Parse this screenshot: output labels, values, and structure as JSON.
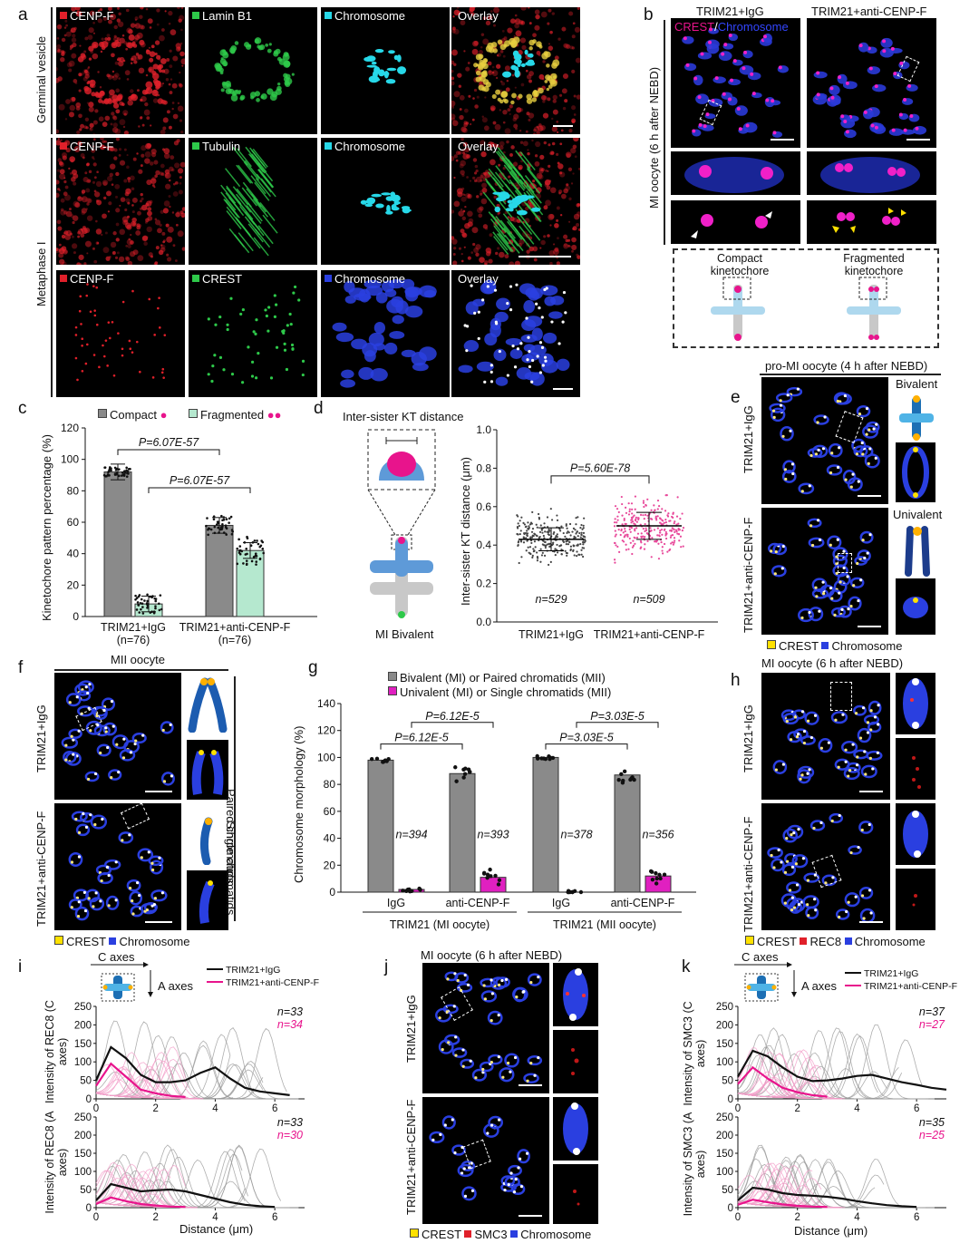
{
  "panels": {
    "a": {
      "label": "a",
      "row_labels": [
        "Germinal vesicle",
        "Metaphase I"
      ],
      "rows": [
        [
          "CENP-F",
          "Lamin B1",
          "Chromosome",
          "Overlay"
        ],
        [
          "CENP-F",
          "Tubulin",
          "Chromosome",
          "Overlay"
        ],
        [
          "CENP-F",
          "CREST",
          "Chromosome",
          "Overlay"
        ]
      ]
    },
    "b": {
      "label": "b",
      "col_labels": [
        "TRIM21+IgG",
        "TRIM21+anti-CENP-F"
      ],
      "legend_crest": "CREST",
      "legend_sep": "/",
      "legend_chrom": "Chromosome",
      "side_label": "MI oocyte (6 h after NEBD)",
      "schematic_labels": [
        "Compact kinetochore",
        "Fragmented kinetochore"
      ]
    },
    "c": {
      "label": "c",
      "legend": [
        "Compact",
        "Fragmented"
      ],
      "ylabel": "Kinetochore pattern percentage (%)",
      "yticks": [
        "0",
        "20",
        "40",
        "60",
        "80",
        "100",
        "120"
      ],
      "pvalues": [
        "P=6.07E-57",
        "P=6.07E-57"
      ],
      "groups": [
        "TRIM21+IgG",
        "TRIM21+anti-CENP-F"
      ],
      "ns": [
        "(n=76)",
        "(n=76)"
      ]
    },
    "d": {
      "label": "d",
      "schematic_title": "Inter-sister KT distance",
      "schematic_label": "MI Bivalent",
      "ylabel": "Inter-sister KT distance (μm)",
      "yticks": [
        "0.0",
        "0.2",
        "0.4",
        "0.6",
        "0.8",
        "1.0"
      ],
      "pvalue": "P=5.60E-78",
      "groups": [
        "TRIM21+IgG",
        "TRIM21+anti-CENP-F"
      ],
      "ns": [
        "n=529",
        "n=509"
      ]
    },
    "e": {
      "label": "e",
      "title": "pro-MI oocyte (4 h after NEBD)",
      "row_labels": [
        "TRIM21+IgG",
        "TRIM21+anti-CENP-F"
      ],
      "schematic_labels": [
        "Bivalent",
        "Univalent"
      ],
      "legend": [
        "CREST",
        "Chromosome"
      ]
    },
    "f": {
      "label": "f",
      "title": "MII oocyte",
      "row_labels": [
        "TRIM21+IgG",
        "TRIM21+anti-CENP-F"
      ],
      "side_labels": [
        "Paired chromatids",
        "Single chromatids"
      ],
      "legend": [
        "CREST",
        "Chromosome"
      ]
    },
    "g": {
      "label": "g",
      "legend": [
        "Bivalent (MI) or Paired chromatids (MII)",
        "Univalent (MI) or Single chromatids (MII)"
      ],
      "ylabel": "Chromosome morphology (%)",
      "yticks": [
        "0",
        "20",
        "40",
        "60",
        "80",
        "100",
        "120",
        "140"
      ],
      "pvalues": [
        "P=6.12E-5",
        "P=6.12E-5",
        "P=3.03E-5",
        "P=3.03E-5"
      ],
      "ns": [
        "n=394",
        "n=393",
        "n=378",
        "n=356"
      ],
      "xlabels": [
        "IgG",
        "anti-CENP-F",
        "IgG",
        "anti-CENP-F"
      ],
      "group_labels": [
        "TRIM21 (MI oocyte)",
        "TRIM21 (MII oocyte)"
      ]
    },
    "h": {
      "label": "h",
      "title": "MI oocyte (6 h after NEBD)",
      "row_labels": [
        "TRIM21+IgG",
        "TRIM21+anti-CENP-F"
      ],
      "legend": [
        "CREST",
        "REC8",
        "Chromosome"
      ]
    },
    "i": {
      "label": "i",
      "axes_labels": [
        "C axes",
        "A axes"
      ],
      "legend": [
        "TRIM21+IgG",
        "TRIM21+anti-CENP-F"
      ],
      "ylabels": [
        "Intensity of REC8 (C axes)",
        "Intensity of REC8 (A axes)"
      ],
      "yticks": [
        "0",
        "50",
        "100",
        "150",
        "200",
        "250"
      ],
      "xticks": [
        "0",
        "2",
        "4",
        "6"
      ],
      "xlabel": "Distance (μm)",
      "ns_top": [
        "n=33",
        "n=34"
      ],
      "ns_bottom": [
        "n=33",
        "n=30"
      ]
    },
    "j": {
      "label": "j",
      "title": "MI oocyte (6 h after NEBD)",
      "row_labels": [
        "TRIM21+IgG",
        "TRIM21+anti-CENP-F"
      ],
      "legend": [
        "CREST",
        "SMC3",
        "Chromosome"
      ]
    },
    "k": {
      "label": "k",
      "axes_labels": [
        "C axes",
        "A axes"
      ],
      "legend": [
        "TRIM21+IgG",
        "TRIM21+anti-CENP-F"
      ],
      "ylabels": [
        "Intensity of SMC3 (C axes)",
        "Intensity of SMC3 (A axes)"
      ],
      "yticks": [
        "0",
        "50",
        "100",
        "150",
        "200",
        "250"
      ],
      "xticks": [
        "0",
        "2",
        "4",
        "6"
      ],
      "xlabel": "Distance (μm)",
      "ns_top": [
        "n=37",
        "n=27"
      ],
      "ns_bottom": [
        "n=35",
        "n=25"
      ]
    }
  },
  "colors": {
    "red": "#e0202a",
    "green": "#2ec94a",
    "cyan": "#27d8e8",
    "blue": "#2a3fe0",
    "magenta": "#e8148c",
    "yellow": "#ffe100",
    "gray_bar": "#8a8a8a",
    "mint_bar": "#b5e8cf",
    "pink": "#e8489a"
  },
  "chart_data": [
    {
      "id": "c",
      "type": "bar",
      "categories": [
        "TRIM21+IgG",
        "TRIM21+anti-CENP-F"
      ],
      "series": [
        {
          "name": "Compact",
          "values": [
            92,
            58
          ]
        },
        {
          "name": "Fragmented",
          "values": [
            8,
            42
          ]
        }
      ],
      "ylabel": "Kinetochore pattern percentage (%)",
      "ylim": [
        0,
        120
      ]
    },
    {
      "id": "d",
      "type": "scatter",
      "categories": [
        "TRIM21+IgG",
        "TRIM21+anti-CENP-F"
      ],
      "means": [
        0.43,
        0.5
      ],
      "sd": [
        0.06,
        0.07
      ],
      "ylabel": "Inter-sister KT distance (μm)",
      "ylim": [
        0,
        1.0
      ]
    },
    {
      "id": "g",
      "type": "bar",
      "categories": [
        "IgG (MI)",
        "anti-CENP-F (MI)",
        "IgG (MII)",
        "anti-CENP-F (MII)"
      ],
      "series": [
        {
          "name": "Bivalent (MI) or Paired chromatids (MII)",
          "values": [
            98,
            88,
            100,
            87
          ]
        },
        {
          "name": "Univalent (MI) or Single chromatids (MII)",
          "values": [
            2,
            11,
            0,
            12
          ]
        }
      ],
      "ylabel": "Chromosome morphology (%)",
      "ylim": [
        0,
        140
      ]
    },
    {
      "id": "i",
      "type": "line",
      "series": [
        {
          "name": "TRIM21+IgG (C axes)",
          "x": [
            0,
            0.5,
            1,
            1.5,
            2,
            2.5,
            3,
            3.5,
            4,
            4.5,
            5,
            5.5,
            6,
            6.5
          ],
          "values": [
            50,
            140,
            110,
            65,
            45,
            45,
            50,
            70,
            85,
            55,
            30,
            20,
            15,
            10
          ]
        },
        {
          "name": "TRIM21+anti-CENP-F (C axes)",
          "x": [
            0,
            0.5,
            1,
            1.5,
            2,
            2.5,
            3
          ],
          "values": [
            35,
            95,
            60,
            25,
            15,
            8,
            5
          ]
        },
        {
          "name": "TRIM21+IgG (A axes)",
          "x": [
            0,
            0.5,
            1,
            1.5,
            2,
            2.5,
            3,
            3.5,
            4,
            4.5,
            5,
            5.5,
            6
          ],
          "values": [
            20,
            65,
            55,
            45,
            48,
            50,
            45,
            35,
            25,
            15,
            8,
            4,
            2
          ]
        },
        {
          "name": "TRIM21+anti-CENP-F (A axes)",
          "x": [
            0,
            0.5,
            1,
            1.5,
            2,
            2.5,
            3
          ],
          "values": [
            10,
            28,
            18,
            10,
            6,
            3,
            2
          ]
        }
      ],
      "xlim": [
        0,
        7
      ],
      "ylim": [
        0,
        250
      ]
    },
    {
      "id": "k",
      "type": "line",
      "series": [
        {
          "name": "TRIM21+IgG (C axes)",
          "x": [
            0,
            0.5,
            1,
            1.5,
            2,
            2.5,
            3,
            3.5,
            4,
            4.5,
            5,
            5.5,
            6,
            6.5,
            7
          ],
          "values": [
            60,
            130,
            115,
            85,
            60,
            48,
            50,
            55,
            62,
            65,
            55,
            45,
            38,
            30,
            25
          ]
        },
        {
          "name": "TRIM21+anti-CENP-F (C axes)",
          "x": [
            0,
            0.5,
            1,
            1.5,
            2,
            2.5,
            3
          ],
          "values": [
            40,
            85,
            55,
            30,
            18,
            10,
            6
          ]
        },
        {
          "name": "TRIM21+IgG (A axes)",
          "x": [
            0,
            0.5,
            1,
            1.5,
            2,
            2.5,
            3,
            3.5,
            4,
            4.5,
            5,
            5.5,
            6
          ],
          "values": [
            20,
            55,
            50,
            40,
            35,
            33,
            30,
            25,
            18,
            12,
            7,
            4,
            2
          ]
        },
        {
          "name": "TRIM21+anti-CENP-F (A axes)",
          "x": [
            0,
            0.5,
            1,
            1.5,
            2,
            2.5,
            3
          ],
          "values": [
            8,
            22,
            15,
            9,
            5,
            3,
            2
          ]
        }
      ],
      "xlim": [
        0,
        7
      ],
      "ylim": [
        0,
        250
      ]
    }
  ]
}
